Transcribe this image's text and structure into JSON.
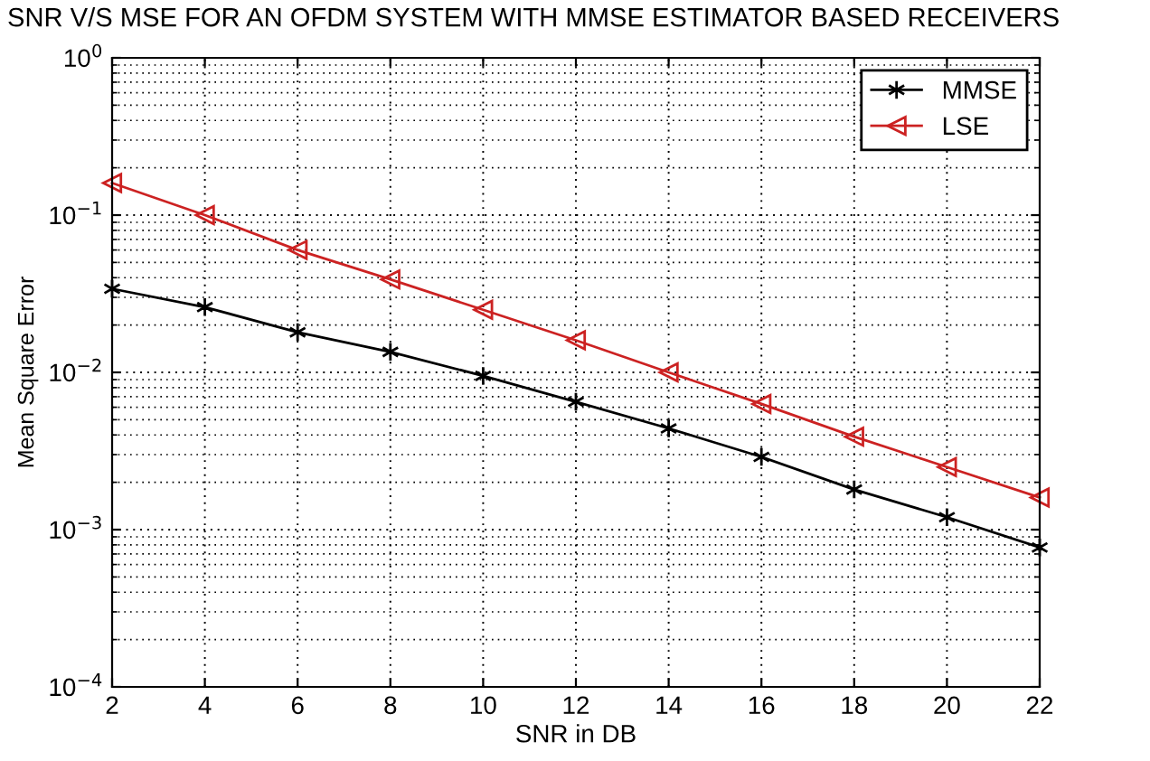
{
  "chart_data": {
    "type": "line",
    "title": "SNR V/S MSE FOR AN OFDM SYSTEM WITH MMSE ESTIMATOR BASED RECEIVERS",
    "xlabel": "SNR in DB",
    "ylabel": "Mean Square Error",
    "x": [
      2,
      4,
      6,
      8,
      10,
      12,
      14,
      16,
      18,
      20,
      22
    ],
    "series": [
      {
        "name": "MMSE",
        "color": "#000000",
        "marker": "cross",
        "values": [
          0.034,
          0.026,
          0.018,
          0.0135,
          0.0095,
          0.0065,
          0.0044,
          0.0029,
          0.0018,
          0.0012,
          0.00077
        ]
      },
      {
        "name": "LSE",
        "color": "#cc2222",
        "marker": "triangle",
        "values": [
          0.16,
          0.1,
          0.06,
          0.039,
          0.025,
          0.016,
          0.01,
          0.0063,
          0.0039,
          0.0025,
          0.0016
        ]
      }
    ],
    "log": "y",
    "xlim": [
      2,
      22
    ],
    "xticks": [
      2,
      4,
      6,
      8,
      10,
      12,
      14,
      16,
      18,
      20,
      22
    ],
    "ylim": [
      0.0001,
      1
    ],
    "yticks": [
      {
        "value": 0.0001,
        "label": "10$^{−4}$"
      },
      {
        "value": 0.001,
        "label": "10$^{−3}$"
      },
      {
        "value": 0.01,
        "label": "10$^{−2}$"
      },
      {
        "value": 0.1,
        "label": "10$^{−1}$"
      },
      {
        "value": 1,
        "label": "10$^{0}$"
      }
    ],
    "grid": true,
    "legend": "top right",
    "line_style": "solid"
  }
}
